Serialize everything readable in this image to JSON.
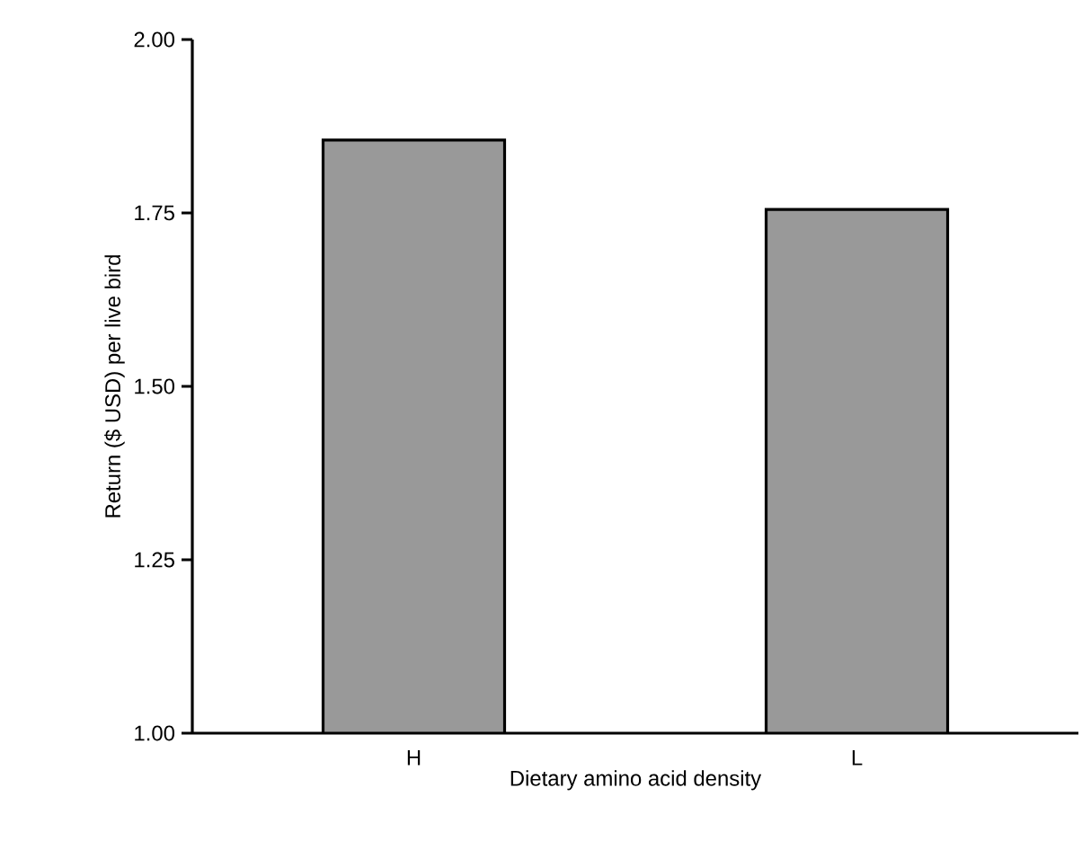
{
  "chart_data": {
    "type": "bar",
    "xlabel": "Dietary amino acid density",
    "ylabel": "Return ($ USD) per live bird",
    "categories": [
      "H",
      "L"
    ],
    "values": [
      1.855,
      1.755
    ],
    "color": "#999999",
    "ylim": [
      1.0,
      2.0
    ],
    "yticks": [
      {
        "value": 1.0,
        "label": "1.00"
      },
      {
        "value": 1.25,
        "label": "1.25"
      },
      {
        "value": 1.5,
        "label": "1.50"
      },
      {
        "value": 1.75,
        "label": "1.75"
      },
      {
        "value": 2.0,
        "label": "2.00"
      }
    ],
    "grid": false
  }
}
